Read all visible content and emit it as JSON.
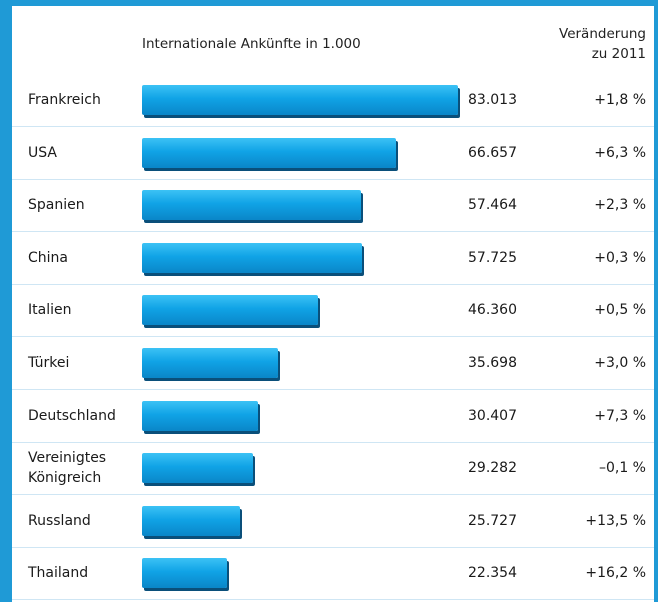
{
  "chart_data": {
    "type": "bar",
    "orientation": "horizontal",
    "title": "Internationale Ankünfte in 1.000",
    "change_header": [
      "Veränderung",
      "zu 2011"
    ],
    "categories": [
      "Frankreich",
      "USA",
      "Spanien",
      "China",
      "Italien",
      "Türkei",
      "Deutschland",
      "Vereinigtes Königreich",
      "Russland",
      "Thailand"
    ],
    "values": [
      83013,
      66657,
      57464,
      57725,
      46360,
      35698,
      30407,
      29282,
      25727,
      22354
    ],
    "value_labels": [
      "83.013",
      "66.657",
      "57.464",
      "57.725",
      "46.360",
      "35.698",
      "30.407",
      "29.282",
      "25.727",
      "22.354"
    ],
    "change": {
      "values": [
        1.8,
        6.3,
        2.3,
        0.3,
        0.5,
        3.0,
        7.3,
        -0.1,
        13.5,
        16.2
      ],
      "value_labels": [
        "+1,8 %",
        "+6,3 %",
        "+2,3 %",
        "+0,3 %",
        "+0,5 %",
        "+3,0 %",
        "+7,3 %",
        "–0,1 %",
        "+13,5 %",
        "+16,2 %"
      ]
    },
    "color": "#10a3e6"
  }
}
